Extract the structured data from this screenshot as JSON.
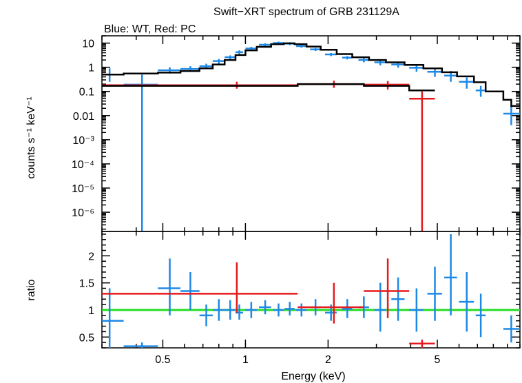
{
  "chart_data": [
    {
      "type": "scatter",
      "panel": "spectrum",
      "title": "Swift−XRT spectrum of GRB 231129A",
      "subtitle": "Blue: WT, Red: PC",
      "ylabel": "counts s⁻¹ keV⁻¹",
      "xscale": "log",
      "yscale": "log",
      "xlim": [
        0.3,
        10
      ],
      "ylim": [
        1.6e-07,
        20
      ],
      "ytick_labels": [
        "10",
        "1",
        "0.1",
        "0.01",
        "10⁻³",
        "10⁻⁴",
        "10⁻⁵",
        "10⁻⁶"
      ],
      "ytick_values": [
        10,
        1,
        0.1,
        0.01,
        0.001,
        0.0001,
        1e-05,
        1e-06
      ],
      "series": [
        {
          "color": "#1e88e5",
          "points": [
            {
              "x": 0.32,
              "xlo": 0.3,
              "xhi": 0.36,
              "y": 0.5,
              "ylo": 0.25,
              "yhi": 0.9
            },
            {
              "x": 0.42,
              "xlo": 0.36,
              "xhi": 0.48,
              "y": 0.19,
              "ylo": 1.6e-07,
              "yhi": 0.5
            },
            {
              "x": 0.53,
              "xlo": 0.48,
              "xhi": 0.58,
              "y": 0.75,
              "ylo": 0.55,
              "yhi": 1.0
            },
            {
              "x": 0.63,
              "xlo": 0.58,
              "xhi": 0.68,
              "y": 0.85,
              "ylo": 0.65,
              "yhi": 1.1
            },
            {
              "x": 0.72,
              "xlo": 0.68,
              "xhi": 0.76,
              "y": 1.1,
              "ylo": 0.85,
              "yhi": 1.4
            },
            {
              "x": 0.8,
              "xlo": 0.76,
              "xhi": 0.84,
              "y": 1.8,
              "ylo": 1.4,
              "yhi": 2.2
            },
            {
              "x": 0.88,
              "xlo": 0.84,
              "xhi": 0.92,
              "y": 2.6,
              "ylo": 2.1,
              "yhi": 3.1
            },
            {
              "x": 0.95,
              "xlo": 0.92,
              "xhi": 0.98,
              "y": 4.2,
              "ylo": 3.5,
              "yhi": 5.0
            },
            {
              "x": 1.05,
              "xlo": 1.0,
              "xhi": 1.1,
              "y": 6.0,
              "ylo": 5.0,
              "yhi": 7.0
            },
            {
              "x": 1.18,
              "xlo": 1.12,
              "xhi": 1.24,
              "y": 8.5,
              "ylo": 7.2,
              "yhi": 9.8
            },
            {
              "x": 1.32,
              "xlo": 1.26,
              "xhi": 1.38,
              "y": 10.0,
              "ylo": 8.6,
              "yhi": 11.5
            },
            {
              "x": 1.45,
              "xlo": 1.39,
              "xhi": 1.51,
              "y": 9.5,
              "ylo": 8.2,
              "yhi": 10.9
            },
            {
              "x": 1.6,
              "xlo": 1.53,
              "xhi": 1.67,
              "y": 7.5,
              "ylo": 6.4,
              "yhi": 8.6
            },
            {
              "x": 1.8,
              "xlo": 1.72,
              "xhi": 1.88,
              "y": 5.5,
              "ylo": 4.7,
              "yhi": 6.3
            },
            {
              "x": 2.05,
              "xlo": 1.95,
              "xhi": 2.15,
              "y": 3.4,
              "ylo": 2.9,
              "yhi": 3.9
            },
            {
              "x": 2.35,
              "xlo": 2.25,
              "xhi": 2.45,
              "y": 2.5,
              "ylo": 2.1,
              "yhi": 2.9
            },
            {
              "x": 2.7,
              "xlo": 2.58,
              "xhi": 2.82,
              "y": 2.0,
              "ylo": 1.6,
              "yhi": 2.4
            },
            {
              "x": 3.1,
              "xlo": 2.95,
              "xhi": 3.25,
              "y": 1.6,
              "ylo": 1.2,
              "yhi": 2.0
            },
            {
              "x": 3.6,
              "xlo": 3.4,
              "xhi": 3.8,
              "y": 1.3,
              "ylo": 0.95,
              "yhi": 1.7
            },
            {
              "x": 4.2,
              "xlo": 3.95,
              "xhi": 4.45,
              "y": 0.95,
              "ylo": 0.65,
              "yhi": 1.3
            },
            {
              "x": 4.9,
              "xlo": 4.6,
              "xhi": 5.2,
              "y": 0.65,
              "ylo": 0.4,
              "yhi": 0.95
            },
            {
              "x": 5.6,
              "xlo": 5.3,
              "xhi": 5.9,
              "y": 0.45,
              "ylo": 0.25,
              "yhi": 0.7
            },
            {
              "x": 6.4,
              "xlo": 6.0,
              "xhi": 6.8,
              "y": 0.25,
              "ylo": 0.13,
              "yhi": 0.38
            },
            {
              "x": 7.2,
              "xlo": 6.9,
              "xhi": 7.5,
              "y": 0.11,
              "ylo": 0.06,
              "yhi": 0.17
            },
            {
              "x": 9.3,
              "xlo": 8.7,
              "xhi": 10.0,
              "y": 0.012,
              "ylo": 0.004,
              "yhi": 0.025
            }
          ]
        },
        {
          "color": "#e41a1c",
          "points": [
            {
              "x": 0.93,
              "xlo": 0.3,
              "xhi": 1.55,
              "y": 0.18,
              "ylo": 0.13,
              "yhi": 0.25
            },
            {
              "x": 2.1,
              "xlo": 1.55,
              "xhi": 2.7,
              "y": 0.2,
              "ylo": 0.14,
              "yhi": 0.28
            },
            {
              "x": 3.3,
              "xlo": 2.7,
              "xhi": 3.95,
              "y": 0.19,
              "ylo": 0.12,
              "yhi": 0.27
            },
            {
              "x": 4.4,
              "xlo": 3.95,
              "xhi": 4.9,
              "y": 0.05,
              "ylo": 1.6e-07,
              "yhi": 0.1
            }
          ]
        }
      ],
      "models": [
        {
          "color": "#000000",
          "steps": [
            [
              0.3,
              0.5
            ],
            [
              0.36,
              0.55
            ],
            [
              0.48,
              0.6
            ],
            [
              0.58,
              0.7
            ],
            [
              0.68,
              0.9
            ],
            [
              0.76,
              1.3
            ],
            [
              0.84,
              2.0
            ],
            [
              0.92,
              3.2
            ],
            [
              1.0,
              5.0
            ],
            [
              1.1,
              7.0
            ],
            [
              1.24,
              9.0
            ],
            [
              1.38,
              9.8
            ],
            [
              1.51,
              9.0
            ],
            [
              1.67,
              7.2
            ],
            [
              1.88,
              5.3
            ],
            [
              2.15,
              3.5
            ],
            [
              2.45,
              2.6
            ],
            [
              2.82,
              2.0
            ],
            [
              3.25,
              1.6
            ],
            [
              3.8,
              1.25
            ],
            [
              4.45,
              0.9
            ],
            [
              5.2,
              0.62
            ],
            [
              5.9,
              0.42
            ],
            [
              6.8,
              0.24
            ],
            [
              7.5,
              0.1
            ],
            [
              8.7,
              0.045
            ],
            [
              9.3,
              0.025
            ],
            [
              10.0,
              0.025
            ]
          ]
        },
        {
          "color": "#000000",
          "steps": [
            [
              0.3,
              0.17
            ],
            [
              1.55,
              0.17
            ],
            [
              1.55,
              0.2
            ],
            [
              2.7,
              0.2
            ],
            [
              2.7,
              0.17
            ],
            [
              3.95,
              0.17
            ],
            [
              3.95,
              0.11
            ],
            [
              4.9,
              0.11
            ]
          ]
        }
      ]
    },
    {
      "type": "scatter",
      "panel": "ratio",
      "xlabel": "Energy (keV)",
      "ylabel": "ratio",
      "xscale": "log",
      "xlim": [
        0.3,
        10
      ],
      "ylim": [
        0.3,
        2.45
      ],
      "xtick_labels": [
        "0.5",
        "1",
        "2",
        "5"
      ],
      "xtick_values": [
        0.5,
        1,
        2,
        5
      ],
      "ytick_labels": [
        "0.5",
        "1",
        "1.5",
        "2"
      ],
      "ytick_values": [
        0.5,
        1,
        1.5,
        2
      ],
      "reference_line": {
        "y": 1,
        "color": "#22dd22"
      },
      "series": [
        {
          "color": "#1e88e5",
          "points": [
            {
              "x": 0.32,
              "xlo": 0.3,
              "xhi": 0.36,
              "y": 0.8,
              "ylo": 0.3,
              "yhi": 1.4
            },
            {
              "x": 0.42,
              "xlo": 0.36,
              "xhi": 0.48,
              "y": 0.33,
              "ylo": 0.3,
              "yhi": 0.4
            },
            {
              "x": 0.53,
              "xlo": 0.48,
              "xhi": 0.58,
              "y": 1.4,
              "ylo": 0.9,
              "yhi": 1.95
            },
            {
              "x": 0.63,
              "xlo": 0.58,
              "xhi": 0.68,
              "y": 1.35,
              "ylo": 1.0,
              "yhi": 1.7
            },
            {
              "x": 0.72,
              "xlo": 0.68,
              "xhi": 0.76,
              "y": 0.9,
              "ylo": 0.7,
              "yhi": 1.1
            },
            {
              "x": 0.8,
              "xlo": 0.76,
              "xhi": 0.84,
              "y": 1.0,
              "ylo": 0.8,
              "yhi": 1.2
            },
            {
              "x": 0.88,
              "xlo": 0.84,
              "xhi": 0.92,
              "y": 1.0,
              "ylo": 0.82,
              "yhi": 1.18
            },
            {
              "x": 0.95,
              "xlo": 0.92,
              "xhi": 0.98,
              "y": 0.95,
              "ylo": 0.82,
              "yhi": 1.1
            },
            {
              "x": 1.05,
              "xlo": 1.0,
              "xhi": 1.1,
              "y": 1.0,
              "ylo": 0.85,
              "yhi": 1.15
            },
            {
              "x": 1.18,
              "xlo": 1.12,
              "xhi": 1.24,
              "y": 1.05,
              "ylo": 0.92,
              "yhi": 1.18
            },
            {
              "x": 1.32,
              "xlo": 1.26,
              "xhi": 1.38,
              "y": 1.0,
              "ylo": 0.88,
              "yhi": 1.12
            },
            {
              "x": 1.45,
              "xlo": 1.39,
              "xhi": 1.51,
              "y": 1.02,
              "ylo": 0.9,
              "yhi": 1.15
            },
            {
              "x": 1.6,
              "xlo": 1.53,
              "xhi": 1.67,
              "y": 1.0,
              "ylo": 0.88,
              "yhi": 1.12
            },
            {
              "x": 1.8,
              "xlo": 1.72,
              "xhi": 1.88,
              "y": 1.05,
              "ylo": 0.9,
              "yhi": 1.2
            },
            {
              "x": 2.05,
              "xlo": 1.95,
              "xhi": 2.15,
              "y": 0.95,
              "ylo": 0.8,
              "yhi": 1.1
            },
            {
              "x": 2.35,
              "xlo": 2.25,
              "xhi": 2.45,
              "y": 1.02,
              "ylo": 0.85,
              "yhi": 1.2
            },
            {
              "x": 2.7,
              "xlo": 2.58,
              "xhi": 2.82,
              "y": 1.05,
              "ylo": 0.85,
              "yhi": 1.25
            },
            {
              "x": 3.1,
              "xlo": 2.95,
              "xhi": 3.25,
              "y": 1.0,
              "ylo": 0.6,
              "yhi": 1.5
            },
            {
              "x": 3.6,
              "xlo": 3.4,
              "xhi": 3.8,
              "y": 1.2,
              "ylo": 0.8,
              "yhi": 1.6
            },
            {
              "x": 4.2,
              "xlo": 3.95,
              "xhi": 4.45,
              "y": 1.0,
              "ylo": 0.6,
              "yhi": 1.4
            },
            {
              "x": 4.9,
              "xlo": 4.6,
              "xhi": 5.2,
              "y": 1.3,
              "ylo": 0.8,
              "yhi": 1.8
            },
            {
              "x": 5.6,
              "xlo": 5.3,
              "xhi": 5.9,
              "y": 1.6,
              "ylo": 0.9,
              "yhi": 2.4
            },
            {
              "x": 6.4,
              "xlo": 6.0,
              "xhi": 6.8,
              "y": 1.15,
              "ylo": 0.6,
              "yhi": 1.7
            },
            {
              "x": 7.2,
              "xlo": 6.9,
              "xhi": 7.5,
              "y": 0.9,
              "ylo": 0.5,
              "yhi": 1.3
            },
            {
              "x": 9.3,
              "xlo": 8.7,
              "xhi": 10.0,
              "y": 0.65,
              "ylo": 0.4,
              "yhi": 0.9
            }
          ]
        },
        {
          "color": "#e41a1c",
          "points": [
            {
              "x": 0.93,
              "xlo": 0.3,
              "xhi": 1.55,
              "y": 1.3,
              "ylo": 0.95,
              "yhi": 1.88
            },
            {
              "x": 2.1,
              "xlo": 1.55,
              "xhi": 2.7,
              "y": 1.05,
              "ylo": 0.75,
              "yhi": 1.5
            },
            {
              "x": 3.3,
              "xlo": 2.7,
              "xhi": 3.95,
              "y": 1.35,
              "ylo": 0.85,
              "yhi": 1.95
            },
            {
              "x": 4.4,
              "xlo": 3.95,
              "xhi": 4.9,
              "y": 0.38,
              "ylo": 0.3,
              "yhi": 0.45
            }
          ]
        }
      ]
    }
  ]
}
